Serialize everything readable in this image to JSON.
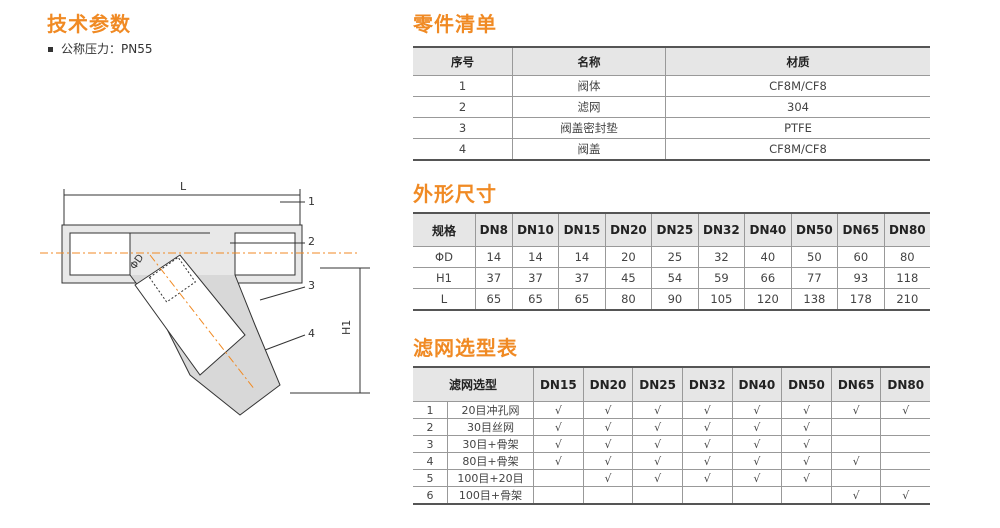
{
  "specs": {
    "title": "技术参数",
    "items": [
      "公称压力：PN55"
    ]
  },
  "parts": {
    "title": "零件清单",
    "headers": [
      "序号",
      "名称",
      "材质"
    ],
    "rows": [
      [
        "1",
        "阀体",
        "CF8M/CF8"
      ],
      [
        "2",
        "滤网",
        "304"
      ],
      [
        "3",
        "阀盖密封垫",
        "PTFE"
      ],
      [
        "4",
        "阀盖",
        "CF8M/CF8"
      ]
    ]
  },
  "dimensions": {
    "title": "外形尺寸",
    "headers": [
      "规格",
      "DN8",
      "DN10",
      "DN15",
      "DN20",
      "DN25",
      "DN32",
      "DN40",
      "DN50",
      "DN65",
      "DN80"
    ],
    "rows": [
      [
        "ΦD",
        "14",
        "14",
        "14",
        "20",
        "25",
        "32",
        "40",
        "50",
        "60",
        "80"
      ],
      [
        "H1",
        "37",
        "37",
        "37",
        "45",
        "54",
        "59",
        "66",
        "77",
        "93",
        "118"
      ],
      [
        "L",
        "65",
        "65",
        "65",
        "80",
        "90",
        "105",
        "120",
        "138",
        "178",
        "210"
      ]
    ]
  },
  "filter": {
    "title": "滤网选型表",
    "headers": [
      "滤网选型",
      "DN15",
      "DN20",
      "DN25",
      "DN32",
      "DN40",
      "DN50",
      "DN65",
      "DN80"
    ],
    "rows": [
      [
        "1",
        "20目冲孔网",
        "√",
        "√",
        "√",
        "√",
        "√",
        "√",
        "√",
        "√"
      ],
      [
        "2",
        "30目丝网",
        "√",
        "√",
        "√",
        "√",
        "√",
        "√",
        "",
        ""
      ],
      [
        "3",
        "30目+骨架",
        "√",
        "√",
        "√",
        "√",
        "√",
        "√",
        "",
        ""
      ],
      [
        "4",
        "80目+骨架",
        "√",
        "√",
        "√",
        "√",
        "√",
        "√",
        "√",
        ""
      ],
      [
        "5",
        "100目+20目",
        "",
        "√",
        "√",
        "√",
        "√",
        "√",
        "",
        ""
      ],
      [
        "6",
        "100目+骨架",
        "",
        "",
        "",
        "",
        "",
        "",
        "√",
        "√"
      ]
    ]
  },
  "drawing": {
    "labels": {
      "L": "L",
      "D": "ΦD",
      "H1": "H1",
      "p1": "1",
      "p2": "2",
      "p3": "3",
      "p4": "4"
    }
  },
  "colors": {
    "accent": "#f08a24",
    "header_bg": "#e6e6e6"
  }
}
